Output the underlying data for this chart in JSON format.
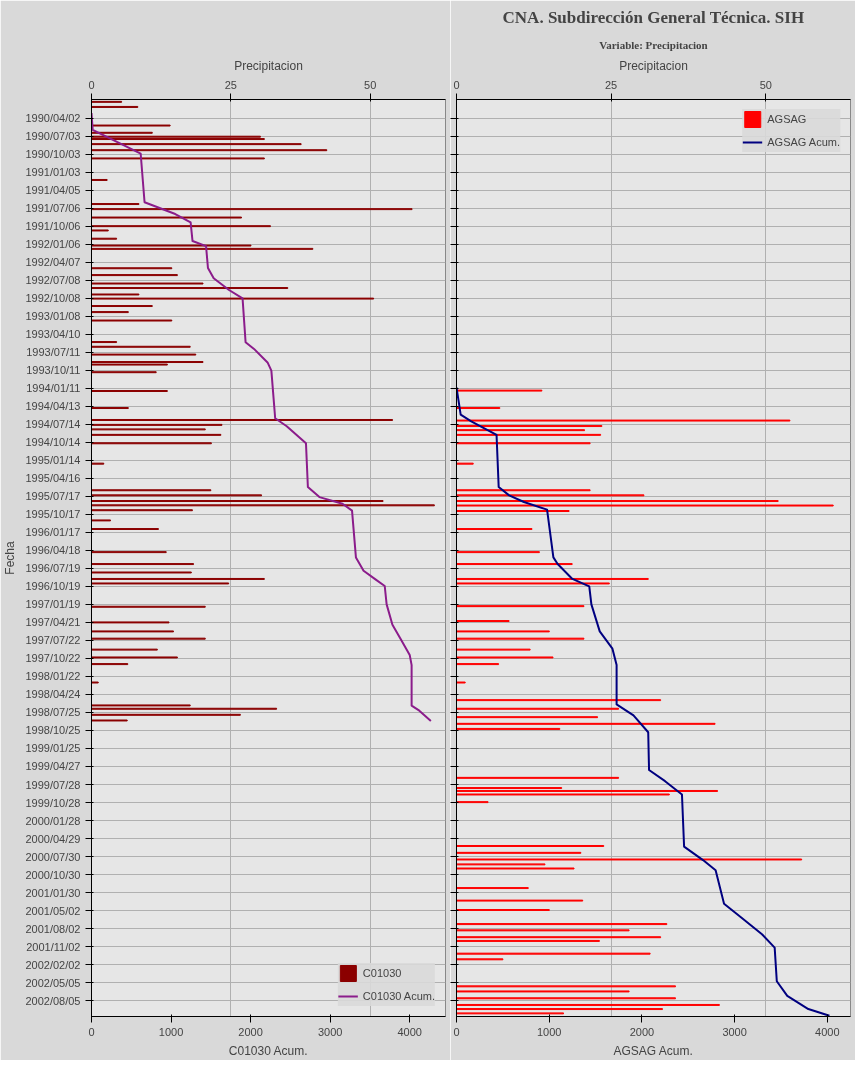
{
  "chart_data": [
    {
      "type": "bar",
      "orientation": "horizontal",
      "xlabel": "Precipitacion",
      "x2label": "C01030 Acum.",
      "ylabel": "Fecha",
      "xlim": [
        0,
        63.5
      ],
      "xticks": [
        0,
        25,
        50
      ],
      "x2lim": [
        0,
        4450
      ],
      "x2ticks": [
        0,
        1000,
        2000,
        3000,
        4000
      ],
      "ylim": [
        "2002-10-25",
        "1989-12-28"
      ],
      "yticks": [
        {
          "value": "1990-04-02",
          "label": "1990/04/02"
        },
        {
          "value": "1990-07-03",
          "label": "1990/07/03"
        },
        {
          "value": "1990-10-03",
          "label": "1990/10/03"
        },
        {
          "value": "1991-01-03",
          "label": "1991/01/03"
        },
        {
          "value": "1991-04-05",
          "label": "1991/04/05"
        },
        {
          "value": "1991-07-06",
          "label": "1991/07/06"
        },
        {
          "value": "1991-10-06",
          "label": "1991/10/06"
        },
        {
          "value": "1992-01-06",
          "label": "1992/01/06"
        },
        {
          "value": "1992-04-07",
          "label": "1992/04/07"
        },
        {
          "value": "1992-07-08",
          "label": "1992/07/08"
        },
        {
          "value": "1992-10-08",
          "label": "1992/10/08"
        },
        {
          "value": "1993-01-08",
          "label": "1993/01/08"
        },
        {
          "value": "1993-04-10",
          "label": "1993/04/10"
        },
        {
          "value": "1993-07-11",
          "label": "1993/07/11"
        },
        {
          "value": "1993-10-11",
          "label": "1993/10/11"
        },
        {
          "value": "1994-01-11",
          "label": "1994/01/11"
        },
        {
          "value": "1994-04-13",
          "label": "1994/04/13"
        },
        {
          "value": "1994-07-14",
          "label": "1994/07/14"
        },
        {
          "value": "1994-10-14",
          "label": "1994/10/14"
        },
        {
          "value": "1995-01-14",
          "label": "1995/01/14"
        },
        {
          "value": "1995-04-16",
          "label": "1995/04/16"
        },
        {
          "value": "1995-07-17",
          "label": "1995/07/17"
        },
        {
          "value": "1995-10-17",
          "label": "1995/10/17"
        },
        {
          "value": "1996-01-17",
          "label": "1996/01/17"
        },
        {
          "value": "1996-04-18",
          "label": "1996/04/18"
        },
        {
          "value": "1996-07-19",
          "label": "1996/07/19"
        },
        {
          "value": "1996-10-19",
          "label": "1996/10/19"
        },
        {
          "value": "1997-01-19",
          "label": "1997/01/19"
        },
        {
          "value": "1997-04-21",
          "label": "1997/04/21"
        },
        {
          "value": "1997-07-22",
          "label": "1997/07/22"
        },
        {
          "value": "1997-10-22",
          "label": "1997/10/22"
        },
        {
          "value": "1998-01-22",
          "label": "1998/01/22"
        },
        {
          "value": "1998-04-24",
          "label": "1998/04/24"
        },
        {
          "value": "1998-07-25",
          "label": "1998/07/25"
        },
        {
          "value": "1998-10-25",
          "label": "1998/10/25"
        },
        {
          "value": "1999-01-25",
          "label": "1999/01/25"
        },
        {
          "value": "1999-04-27",
          "label": "1999/04/27"
        },
        {
          "value": "1999-07-28",
          "label": "1999/07/28"
        },
        {
          "value": "1999-10-28",
          "label": "1999/10/28"
        },
        {
          "value": "2000-01-28",
          "label": "2000/01/28"
        },
        {
          "value": "2000-04-29",
          "label": "2000/04/29"
        },
        {
          "value": "2000-07-30",
          "label": "2000/07/30"
        },
        {
          "value": "2000-10-30",
          "label": "2000/10/30"
        },
        {
          "value": "2001-01-30",
          "label": "2001/01/30"
        },
        {
          "value": "2001-05-02",
          "label": "2001/05/02"
        },
        {
          "value": "2001-08-02",
          "label": "2001/08/02"
        },
        {
          "value": "2001-11-02",
          "label": "2001/11/02"
        },
        {
          "value": "2002-02-02",
          "label": "2002/02/02"
        },
        {
          "value": "2002-05-05",
          "label": "2002/05/05"
        },
        {
          "value": "2002-08-05",
          "label": "2002/08/05"
        }
      ],
      "grid": true,
      "legend": "bottom right",
      "series": [
        {
          "name": "C01030",
          "color": "#8b0000",
          "x": [
            "1990-01-09",
            "1990-02-04",
            "1990-05-10",
            "1990-06-16",
            "1990-07-06",
            "1990-07-18",
            "1990-08-13",
            "1990-09-13",
            "1990-10-25",
            "1991-02-12",
            "1991-06-15",
            "1991-07-11",
            "1991-08-23",
            "1991-10-06",
            "1991-10-28",
            "1991-12-09",
            "1992-01-13",
            "1992-01-30",
            "1992-05-08",
            "1992-06-12",
            "1992-07-25",
            "1992-08-17",
            "1992-09-19",
            "1992-10-10",
            "1992-11-17",
            "1992-12-18",
            "1993-01-30",
            "1993-05-20",
            "1993-06-13",
            "1993-07-23",
            "1993-08-30",
            "1993-09-12",
            "1993-10-21",
            "1994-01-25",
            "1994-04-22",
            "1994-06-22",
            "1994-07-17",
            "1994-08-09",
            "1994-09-06",
            "1994-10-19",
            "1995-01-31",
            "1995-06-16",
            "1995-07-12",
            "1995-08-10",
            "1995-09-01",
            "1995-09-26",
            "1995-11-17",
            "1995-12-31",
            "1996-04-27",
            "1996-06-27",
            "1996-08-09",
            "1996-09-11",
            "1996-10-04",
            "1997-01-31",
            "1997-04-21",
            "1997-06-06",
            "1997-07-13",
            "1997-09-07",
            "1997-10-17",
            "1997-11-20",
            "1998-02-22",
            "1998-06-19",
            "1998-07-06",
            "1998-08-06",
            "1998-09-04"
          ],
          "values": [
            5.4,
            8.3,
            14.1,
            10.9,
            30.3,
            31.0,
            37.6,
            42.2,
            31.0,
            2.8,
            8.5,
            57.5,
            26.9,
            32.1,
            3.0,
            4.5,
            28.6,
            39.7,
            14.4,
            15.4,
            20.0,
            35.2,
            8.5,
            50.6,
            10.9,
            6.6,
            14.4,
            4.5,
            17.7,
            18.7,
            20.0,
            13.6,
            11.6,
            13.6,
            6.6,
            54.0,
            23.4,
            20.4,
            23.2,
            21.5,
            2.2,
            21.4,
            30.5,
            52.3,
            61.5,
            18.1,
            3.4,
            12.0,
            13.4,
            18.3,
            17.9,
            31.0,
            24.6,
            20.4,
            13.9,
            14.7,
            20.4,
            11.8,
            15.4,
            6.5,
            1.2,
            17.7,
            33.2,
            26.7,
            6.4
          ]
        },
        {
          "name": "C01030 Acum.",
          "type": "line",
          "axis": "x2",
          "color": "#8b1c8b",
          "x": [
            "1990-03-07",
            "1990-06-01",
            "1990-09-30",
            "1991-06-06",
            "1991-08-05",
            "1991-09-17",
            "1991-12-21",
            "1992-01-16",
            "1992-05-07",
            "1992-06-28",
            "1992-08-27",
            "1992-10-09",
            "1993-05-21",
            "1993-06-24",
            "1993-09-01",
            "1993-10-13",
            "1994-06-13",
            "1994-07-24",
            "1994-10-19",
            "1995-05-30",
            "1995-07-21",
            "1995-08-24",
            "1995-09-28",
            "1996-05-24",
            "1996-07-31",
            "1996-09-12",
            "1996-10-17",
            "1997-01-19",
            "1997-05-03",
            "1997-07-10",
            "1997-10-04",
            "1997-11-25",
            "1998-06-20",
            "1998-07-16",
            "1998-09-06"
          ],
          "values": [
            0,
            15,
            618,
            667,
            1053,
            1246,
            1270,
            1440,
            1464,
            1536,
            1729,
            1899,
            1937,
            2043,
            2213,
            2261,
            2309,
            2454,
            2696,
            2720,
            2865,
            3155,
            3275,
            3324,
            3420,
            3565,
            3686,
            3710,
            3783,
            3879,
            4000,
            4024,
            4024,
            4121,
            4266
          ]
        }
      ]
    },
    {
      "type": "bar",
      "orientation": "horizontal",
      "title": "CNA. Subdirección General Técnica. SIH",
      "subtitle": "Variable: Precipitacion",
      "xlabel": "Precipitacion",
      "x2label": "AGSAG Acum.",
      "xlim": [
        0,
        63.7
      ],
      "xticks": [
        0,
        25,
        50
      ],
      "x2lim": [
        0,
        4250
      ],
      "x2ticks": [
        0,
        1000,
        2000,
        3000,
        4000
      ],
      "ylim": [
        "2002-10-25",
        "1989-12-28"
      ],
      "yticks": [
        {
          "value": "1990-04-02",
          "label": null
        },
        {
          "value": "1990-07-03",
          "label": null
        },
        {
          "value": "1990-10-03",
          "label": null
        },
        {
          "value": "1991-01-03",
          "label": null
        },
        {
          "value": "1991-04-05",
          "label": null
        },
        {
          "value": "1991-07-06",
          "label": null
        },
        {
          "value": "1991-10-06",
          "label": null
        },
        {
          "value": "1992-01-06",
          "label": null
        },
        {
          "value": "1992-04-07",
          "label": null
        },
        {
          "value": "1992-07-08",
          "label": null
        },
        {
          "value": "1992-10-08",
          "label": null
        },
        {
          "value": "1993-01-08",
          "label": null
        },
        {
          "value": "1993-04-10",
          "label": null
        },
        {
          "value": "1993-07-11",
          "label": null
        },
        {
          "value": "1993-10-11",
          "label": null
        },
        {
          "value": "1994-01-11",
          "label": null
        },
        {
          "value": "1994-04-13",
          "label": null
        },
        {
          "value": "1994-07-14",
          "label": null
        },
        {
          "value": "1994-10-14",
          "label": null
        },
        {
          "value": "1995-01-14",
          "label": null
        },
        {
          "value": "1995-04-16",
          "label": null
        },
        {
          "value": "1995-07-17",
          "label": null
        },
        {
          "value": "1995-10-17",
          "label": null
        },
        {
          "value": "1996-01-17",
          "label": null
        },
        {
          "value": "1996-04-18",
          "label": null
        },
        {
          "value": "1996-07-19",
          "label": null
        },
        {
          "value": "1996-10-19",
          "label": null
        },
        {
          "value": "1997-01-19",
          "label": null
        },
        {
          "value": "1997-04-21",
          "label": null
        },
        {
          "value": "1997-07-22",
          "label": null
        },
        {
          "value": "1997-10-22",
          "label": null
        },
        {
          "value": "1998-01-22",
          "label": null
        },
        {
          "value": "1998-04-24",
          "label": null
        },
        {
          "value": "1998-07-25",
          "label": null
        },
        {
          "value": "1998-10-25",
          "label": null
        },
        {
          "value": "1999-01-25",
          "label": null
        },
        {
          "value": "1999-04-27",
          "label": null
        },
        {
          "value": "1999-07-28",
          "label": null
        },
        {
          "value": "1999-10-28",
          "label": null
        },
        {
          "value": "2000-01-28",
          "label": null
        },
        {
          "value": "2000-04-29",
          "label": null
        },
        {
          "value": "2000-07-30",
          "label": null
        },
        {
          "value": "2000-10-30",
          "label": null
        },
        {
          "value": "2001-01-30",
          "label": null
        },
        {
          "value": "2001-05-02",
          "label": null
        },
        {
          "value": "2001-08-02",
          "label": null
        },
        {
          "value": "2001-11-02",
          "label": null
        },
        {
          "value": "2002-02-02",
          "label": null
        },
        {
          "value": "2002-05-05",
          "label": null
        },
        {
          "value": "2002-08-05",
          "label": null
        }
      ],
      "tick_labels": "x",
      "grid": true,
      "legend": "top right",
      "series": [
        {
          "name": "AGSAG",
          "color": "#ff0000",
          "x": [
            "1994-01-23",
            "1994-04-22",
            "1994-06-25",
            "1994-07-23",
            "1994-08-13",
            "1994-09-06",
            "1994-10-19",
            "1995-01-31",
            "1995-06-16",
            "1995-07-12",
            "1995-08-10",
            "1995-09-02",
            "1995-09-30",
            "1995-12-31",
            "1996-04-27",
            "1996-06-27",
            "1996-09-11",
            "1996-10-04",
            "1997-01-28",
            "1997-04-14",
            "1997-06-06",
            "1997-07-13",
            "1997-09-07",
            "1997-10-17",
            "1997-11-20",
            "1998-02-22",
            "1998-05-23",
            "1998-07-06",
            "1998-08-18",
            "1998-09-21",
            "1998-10-17",
            "1999-06-24",
            "1999-08-15",
            "1999-08-30",
            "1999-09-17",
            "1999-10-26",
            "2000-06-06",
            "2000-07-11",
            "2000-08-14",
            "2000-09-08",
            "2000-09-29",
            "2001-01-07",
            "2001-03-12",
            "2001-04-29",
            "2001-07-10",
            "2001-08-11",
            "2001-09-15",
            "2001-10-04",
            "2001-12-08",
            "2002-01-06",
            "2002-05-24",
            "2002-06-19",
            "2002-07-24",
            "2002-08-27",
            "2002-09-17",
            "2002-10-09"
          ],
          "values": [
            13.8,
            7.0,
            53.9,
            23.5,
            20.7,
            23.3,
            21.6,
            2.7,
            21.6,
            30.3,
            52.0,
            60.9,
            18.2,
            12.2,
            13.4,
            18.7,
            31.0,
            24.7,
            20.6,
            8.5,
            15.0,
            20.6,
            11.9,
            15.6,
            6.8,
            1.4,
            33.0,
            26.2,
            22.8,
            41.8,
            16.7,
            26.2,
            17.0,
            42.2,
            34.4,
            5.1,
            23.8,
            20.1,
            55.8,
            14.3,
            19.0,
            11.6,
            20.4,
            15.0,
            34.0,
            27.9,
            33.0,
            23.1,
            31.3,
            7.5,
            35.4,
            27.9,
            35.4,
            42.5,
            33.3,
            17.3
          ]
        },
        {
          "name": "AGSAG Acum.",
          "type": "line",
          "axis": "x2",
          "color": "#000080",
          "x": [
            "1994-01-07",
            "1994-05-26",
            "1994-06-29",
            "1994-09-06",
            "1995-05-30",
            "1995-07-12",
            "1995-08-15",
            "1995-09-23",
            "1996-05-24",
            "1996-06-27",
            "1996-09-11",
            "1996-10-19",
            "1997-01-19",
            "1997-06-06",
            "1997-09-02",
            "1997-11-25",
            "1998-06-14",
            "1998-08-09",
            "1998-11-03",
            "1999-05-15",
            "1999-07-11",
            "1999-09-17",
            "2000-06-09",
            "2000-08-17",
            "2000-10-08",
            "2001-03-28",
            "2001-06-05",
            "2001-08-31",
            "2001-11-07",
            "2002-04-28",
            "2002-07-12",
            "2002-09-17",
            "2002-10-21"
          ],
          "values": [
            0,
            45,
            159,
            432,
            455,
            568,
            727,
            977,
            1045,
            1091,
            1250,
            1432,
            1455,
            1545,
            1682,
            1727,
            1727,
            1909,
            2068,
            2077,
            2250,
            2432,
            2455,
            2659,
            2795,
            2886,
            3068,
            3295,
            3432,
            3455,
            3568,
            3795,
            4023
          ]
        }
      ]
    }
  ]
}
